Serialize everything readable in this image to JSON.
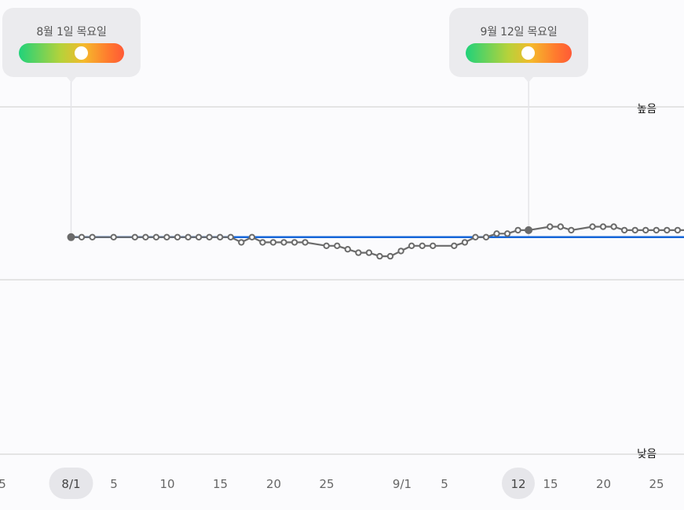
{
  "chart_data": {
    "type": "line",
    "ylabels": {
      "high": "높음",
      "low": "낮음"
    },
    "x_tick_labels": [
      "5",
      "8/1",
      "5",
      "10",
      "15",
      "20",
      "25",
      "9/1",
      "5",
      "12",
      "15",
      "20",
      "25"
    ],
    "highlighted_ticks": [
      "8/1",
      "12"
    ],
    "y_range": [
      0,
      1
    ],
    "baseline": 0.625,
    "series": [
      {
        "points": [
          [
            1,
            0.625
          ],
          [
            2,
            0.625
          ],
          [
            3,
            0.625
          ],
          [
            5,
            0.625
          ],
          [
            7,
            0.625
          ],
          [
            8,
            0.625
          ],
          [
            9,
            0.625
          ],
          [
            10,
            0.625
          ],
          [
            11,
            0.625
          ],
          [
            12,
            0.625
          ],
          [
            13,
            0.625
          ],
          [
            14,
            0.625
          ],
          [
            15,
            0.625
          ],
          [
            16,
            0.625
          ],
          [
            17,
            0.61
          ],
          [
            18,
            0.625
          ],
          [
            19,
            0.61
          ],
          [
            20,
            0.61
          ],
          [
            21,
            0.61
          ],
          [
            22,
            0.61
          ],
          [
            23,
            0.61
          ],
          [
            25,
            0.6
          ],
          [
            26,
            0.6
          ],
          [
            27,
            0.59
          ],
          [
            28,
            0.58
          ],
          [
            29,
            0.58
          ],
          [
            30,
            0.57
          ],
          [
            31,
            0.57
          ],
          [
            32,
            0.585
          ],
          [
            33,
            0.6
          ],
          [
            34,
            0.6
          ],
          [
            35,
            0.6
          ],
          [
            37,
            0.6
          ],
          [
            38,
            0.61
          ],
          [
            39,
            0.625
          ],
          [
            40,
            0.625
          ],
          [
            41,
            0.635
          ],
          [
            42,
            0.635
          ],
          [
            43,
            0.645
          ],
          [
            44,
            0.645
          ],
          [
            46,
            0.655
          ],
          [
            47,
            0.655
          ],
          [
            48,
            0.645
          ],
          [
            50,
            0.655
          ],
          [
            51,
            0.655
          ],
          [
            52,
            0.655
          ],
          [
            53,
            0.645
          ],
          [
            54,
            0.645
          ],
          [
            55,
            0.645
          ],
          [
            56,
            0.645
          ],
          [
            57,
            0.645
          ],
          [
            58,
            0.645
          ],
          [
            59,
            0.645
          ]
        ],
        "filled_points": [
          1,
          44
        ]
      }
    ],
    "tooltips": [
      {
        "date": "8월 1일 목요일",
        "day": 1,
        "level": 0.59
      },
      {
        "date": "9월 12일 목요일",
        "day": 44,
        "level": 0.59
      }
    ],
    "colors": {
      "baseline": "#1565d8",
      "line": "#6b6b6b",
      "grid": "#d6d6d6",
      "highlight_tick_bg": "#e6e6ea",
      "tooltip_bg": "#ebebee"
    },
    "grid": true
  }
}
